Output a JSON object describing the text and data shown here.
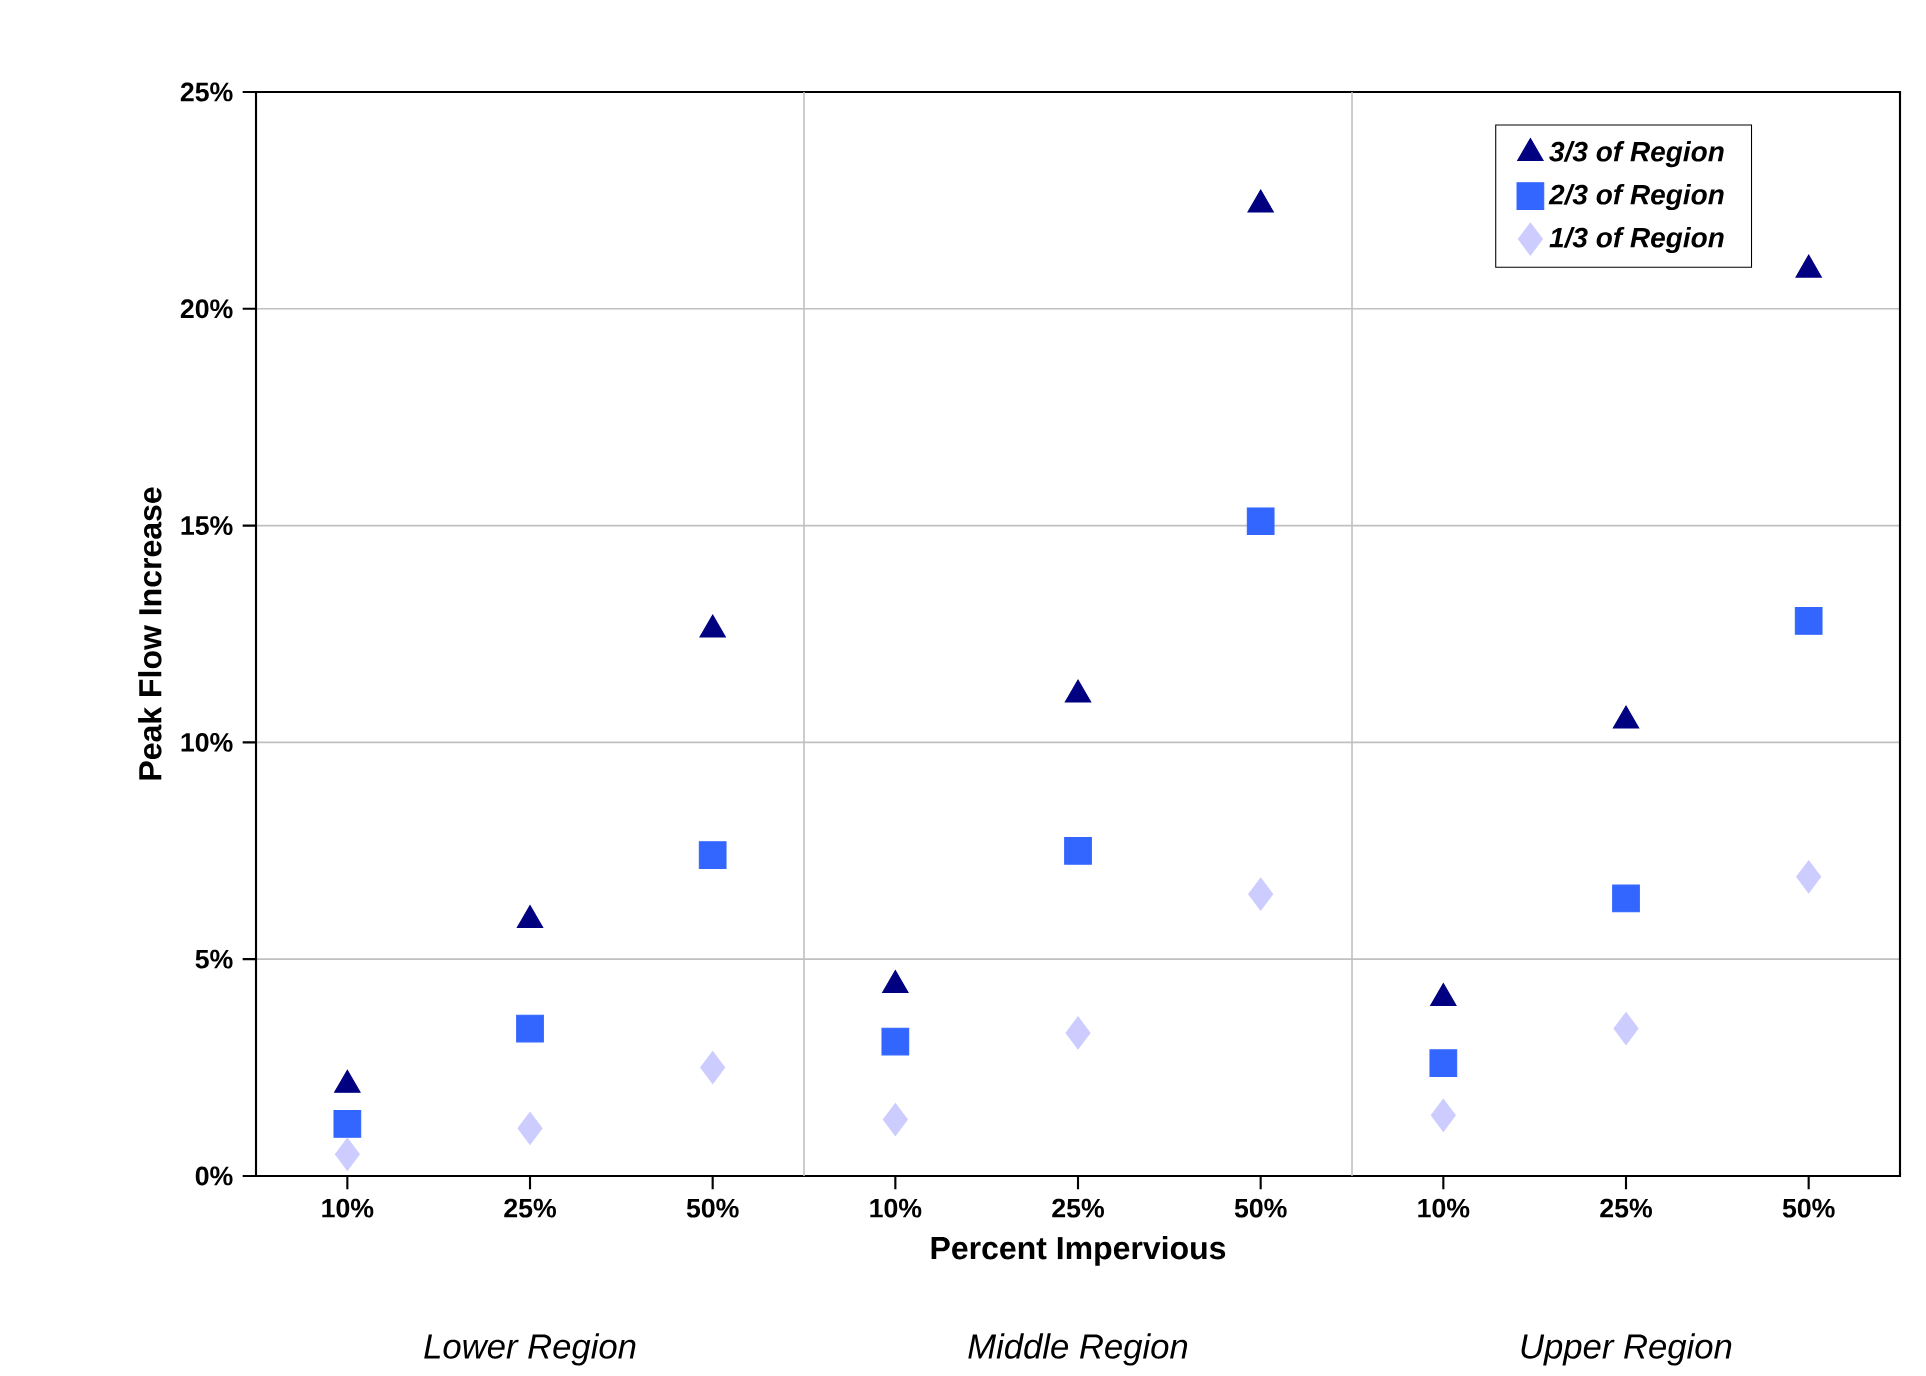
{
  "chart_data": {
    "type": "scatter",
    "xlabel": "Percent Impervious",
    "ylabel": "Peak Flow Increase",
    "categories": [
      "10%",
      "25%",
      "50%",
      "10%",
      "25%",
      "50%",
      "10%",
      "25%",
      "50%"
    ],
    "ylim": [
      0,
      25
    ],
    "yticks": [
      {
        "value": 0,
        "label": "0%"
      },
      {
        "value": 5,
        "label": "5%"
      },
      {
        "value": 10,
        "label": "10%"
      },
      {
        "value": 15,
        "label": "15%"
      },
      {
        "value": 20,
        "label": "20%"
      },
      {
        "value": 25,
        "label": "25%"
      }
    ],
    "grid": "y",
    "legend": "top right",
    "annotations": [
      "Lower Region",
      "Middle Region",
      "Upper Region"
    ],
    "series": [
      {
        "name": "3/3 of Region",
        "color": "#000080",
        "marker": "triangle",
        "values": [
          2.1,
          5.9,
          12.6,
          4.4,
          11.1,
          22.4,
          4.1,
          10.5,
          20.9
        ]
      },
      {
        "name": "2/3 of Region",
        "color": "#3366ff",
        "marker": "square",
        "values": [
          1.2,
          3.4,
          7.4,
          3.1,
          7.5,
          15.1,
          2.6,
          6.4,
          12.8
        ]
      },
      {
        "name": "1/3 of Region",
        "color": "#ccccff",
        "marker": "diamond",
        "values": [
          0.5,
          1.1,
          2.5,
          1.3,
          3.3,
          6.5,
          1.4,
          3.4,
          6.9
        ]
      }
    ]
  }
}
